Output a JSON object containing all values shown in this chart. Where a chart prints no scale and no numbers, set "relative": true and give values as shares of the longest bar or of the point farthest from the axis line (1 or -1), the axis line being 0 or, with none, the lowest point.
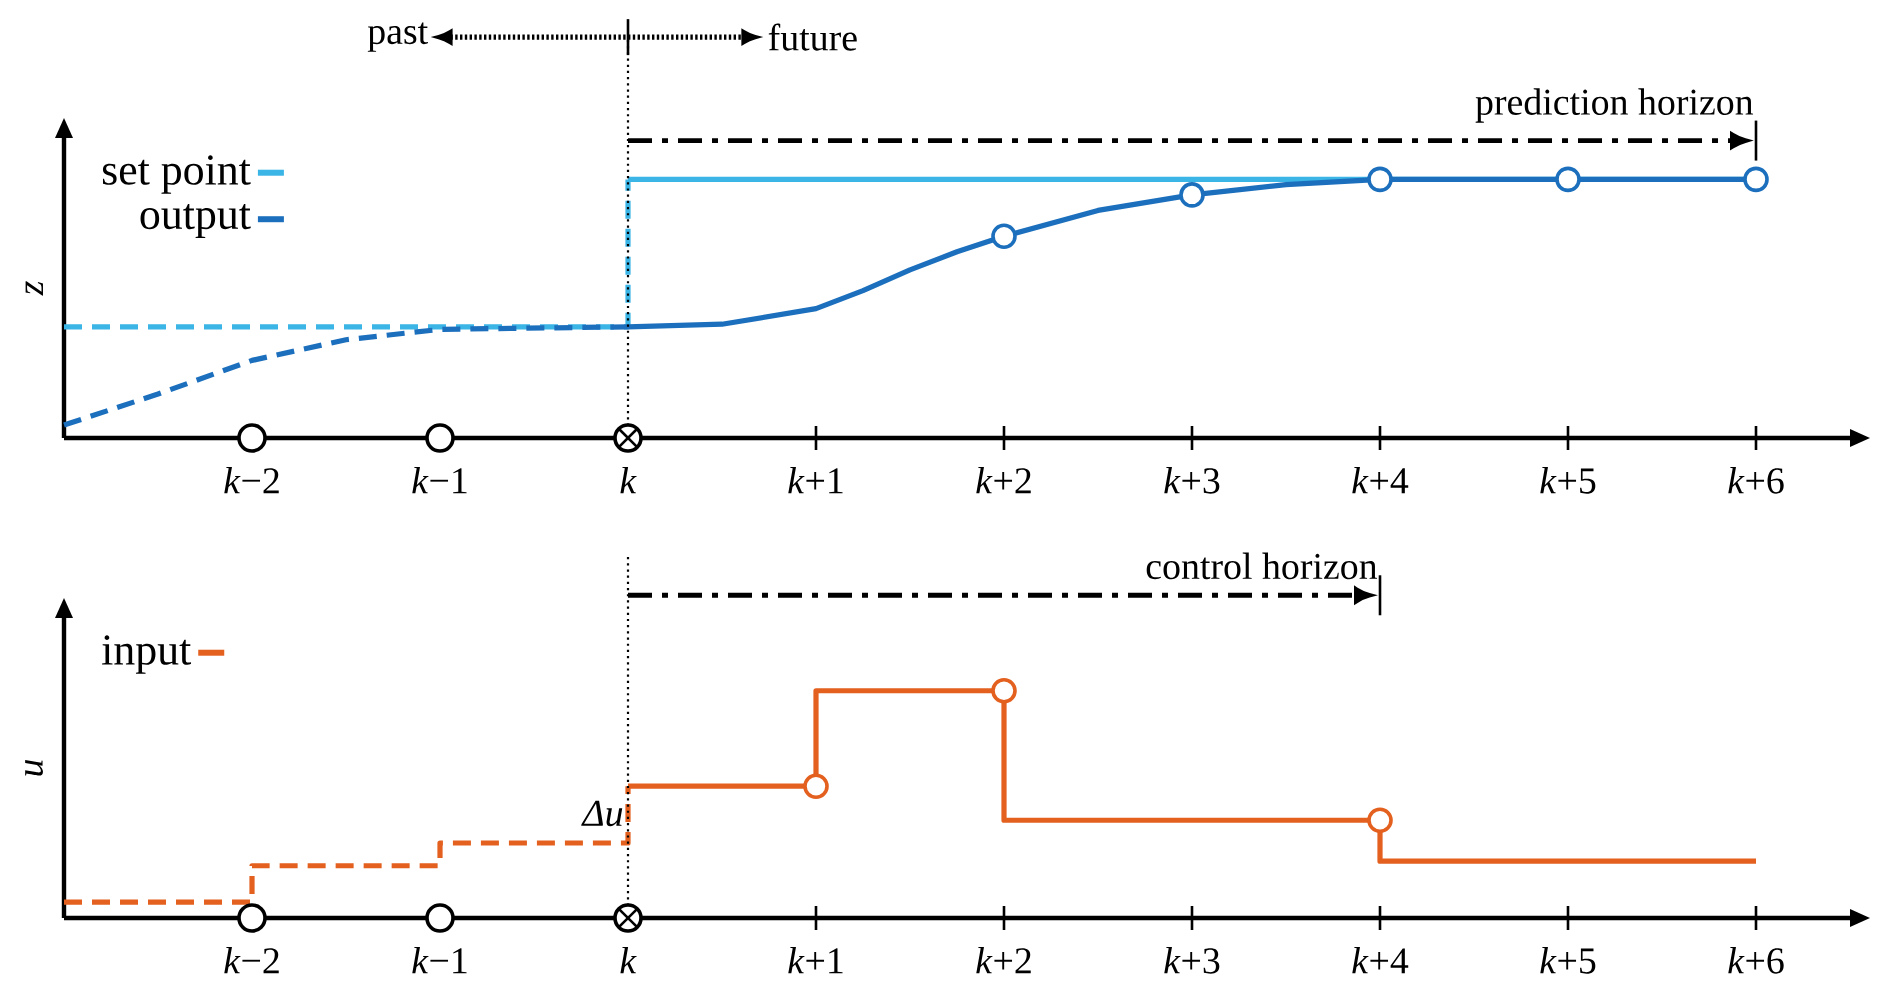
{
  "chart_data": [
    {
      "type": "line",
      "ylabel": "z",
      "xlim": [
        -3,
        6.5
      ],
      "xticks": [
        {
          "value": -2,
          "label": "*k*−2"
        },
        {
          "value": -1,
          "label": "*k*−1"
        },
        {
          "value": 0,
          "label": "*k*"
        },
        {
          "value": 1,
          "label": "*k*+1"
        },
        {
          "value": 2,
          "label": "*k*+2"
        },
        {
          "value": 3,
          "label": "*k*+3"
        },
        {
          "value": 4,
          "label": "*k*+4"
        },
        {
          "value": 5,
          "label": "*k*+5"
        },
        {
          "value": 6,
          "label": "*k*+6"
        }
      ],
      "relative": true,
      "legend": "top left",
      "annotations": [
        "past",
        "future",
        "prediction horizon"
      ],
      "ref_lines": [
        {
          "axis": "x",
          "value": 0,
          "color": "#000000",
          "line_style": "dotted"
        }
      ],
      "series": [
        {
          "color": "#3bb4e6",
          "line_style": "dashed",
          "x": [
            -3,
            0,
            0
          ],
          "values": [
            0.43,
            0.43,
            1
          ]
        },
        {
          "name": "set point",
          "color": "#3bb4e6",
          "x": [
            0,
            6
          ],
          "values": [
            1,
            1
          ]
        },
        {
          "color": "#1c6fbd",
          "line_style": "dashed",
          "x": [
            -3,
            -2.5,
            -2,
            -1.5,
            -1,
            0
          ],
          "values": [
            0.05,
            0.17,
            0.3,
            0.38,
            0.42,
            0.43
          ]
        },
        {
          "name": "output",
          "color": "#1c6fbd",
          "x": [
            0,
            0.5,
            1,
            1.25,
            1.5,
            1.75,
            2,
            2.5,
            3,
            3.5,
            4,
            5,
            6
          ],
          "values": [
            0.43,
            0.44,
            0.5,
            0.57,
            0.65,
            0.72,
            0.78,
            0.88,
            0.94,
            0.98,
            1,
            1,
            1
          ]
        },
        {
          "type": "scatter",
          "color": "#1c6fbd",
          "x": [
            2,
            3,
            4,
            5,
            6
          ],
          "values": [
            0.78,
            0.94,
            1,
            1,
            1
          ]
        }
      ]
    },
    {
      "type": "step",
      "ylabel": "u",
      "xlim": [
        -3,
        6.5
      ],
      "xticks": [
        {
          "value": -2,
          "label": "*k*−2"
        },
        {
          "value": -1,
          "label": "*k*−1"
        },
        {
          "value": 0,
          "label": "*k*"
        },
        {
          "value": 1,
          "label": "*k*+1"
        },
        {
          "value": 2,
          "label": "*k*+2"
        },
        {
          "value": 3,
          "label": "*k*+3"
        },
        {
          "value": 4,
          "label": "*k*+4"
        },
        {
          "value": 5,
          "label": "*k*+5"
        },
        {
          "value": 6,
          "label": "*k*+6"
        }
      ],
      "relative": true,
      "legend": "top left",
      "annotations": [
        {
          "text": "Δu",
          "x": 0,
          "y": 0.46
        },
        "control horizon"
      ],
      "ref_lines": [
        {
          "axis": "x",
          "value": 0,
          "color": "#000000",
          "line_style": "dotted"
        }
      ],
      "series": [
        {
          "color": "#e3601f",
          "line_style": "dashed",
          "x": [
            -3,
            -2,
            -1,
            0,
            0
          ],
          "values": [
            0.07,
            0.23,
            0.33,
            0.33,
            0.58
          ]
        },
        {
          "name": "input",
          "color": "#e3601f",
          "x": [
            0,
            1,
            2,
            4,
            6
          ],
          "values": [
            0.58,
            1,
            0.43,
            0.25,
            0.25
          ]
        },
        {
          "type": "scatter",
          "color": "#e3601f",
          "x": [
            1,
            2,
            4
          ],
          "values": [
            0.58,
            1,
            0.43
          ]
        }
      ]
    }
  ]
}
